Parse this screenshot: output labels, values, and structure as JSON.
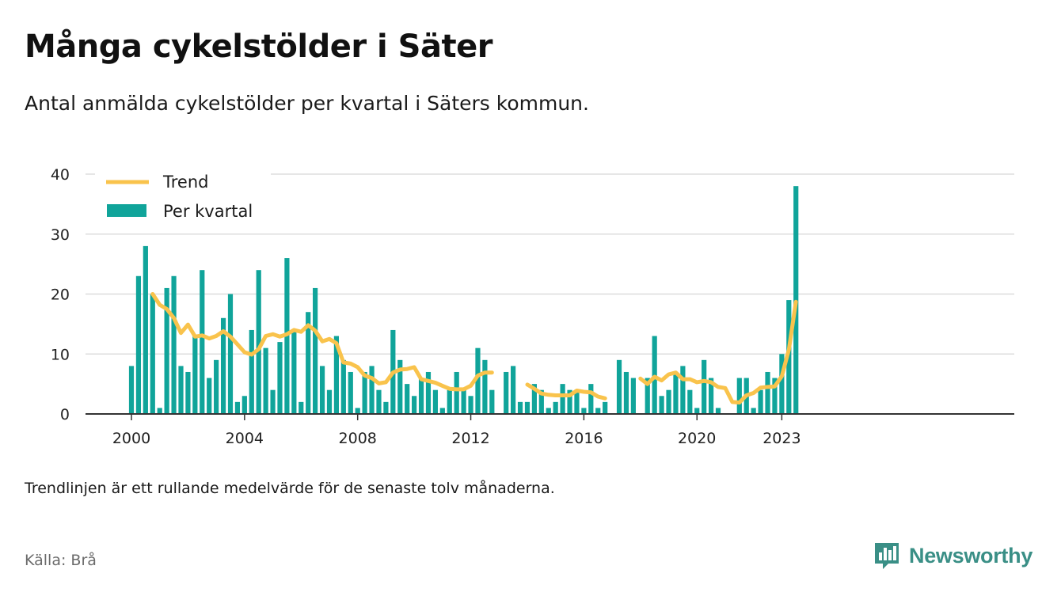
{
  "header": {
    "title": "Många cykelstölder i Säter",
    "subtitle": "Antal anmälda cykelstölder per kvartal i Säters kommun."
  },
  "footer": {
    "note": "Trendlinjen är ett rullande medelvärde för de senaste tolv månaderna.",
    "source": "Källa: Brå",
    "brand": "Newsworthy"
  },
  "colors": {
    "bar": "#10a49a",
    "trend": "#f9c34c",
    "grid": "#dddddd",
    "axis": "#333333",
    "brand": "#3a8f86"
  },
  "icons": {
    "brand_logo": "bar-chart-bubble-icon"
  },
  "chart_data": {
    "type": "bar",
    "ylim": [
      0,
      40
    ],
    "yticks": [
      0,
      10,
      20,
      30,
      40
    ],
    "xticks": [
      {
        "label": "2000",
        "year": 2000
      },
      {
        "label": "2004",
        "year": 2004
      },
      {
        "label": "2008",
        "year": 2008
      },
      {
        "label": "2012",
        "year": 2012
      },
      {
        "label": "2016",
        "year": 2016
      },
      {
        "label": "2020",
        "year": 2020
      },
      {
        "label": "2023",
        "year": 2023
      }
    ],
    "legend_position": "top-left",
    "grid": true,
    "series": [
      {
        "name": "Per kvartal",
        "type": "bar",
        "start": "2000-Q1",
        "values": [
          8,
          23,
          28,
          20,
          1,
          21,
          23,
          8,
          7,
          13,
          24,
          6,
          9,
          16,
          20,
          2,
          3,
          14,
          24,
          11,
          4,
          12,
          26,
          14,
          2,
          17,
          21,
          8,
          4,
          13,
          9,
          7,
          1,
          7,
          8,
          4,
          2,
          14,
          9,
          5,
          3,
          6,
          7,
          4,
          1,
          4,
          7,
          4,
          3,
          11,
          9,
          4,
          null,
          7,
          8,
          2,
          2,
          5,
          4,
          1,
          2,
          5,
          4,
          4,
          1,
          5,
          1,
          2,
          null,
          9,
          7,
          6,
          null,
          6,
          13,
          3,
          4,
          7,
          8,
          4,
          1,
          9,
          6,
          1,
          null,
          null,
          6,
          6,
          1,
          4,
          7,
          6,
          10,
          19,
          38
        ]
      },
      {
        "name": "Trend",
        "type": "line",
        "start": "2000-Q1",
        "values": [
          null,
          null,
          null,
          20,
          18.2,
          17.5,
          16,
          13.5,
          14.9,
          12.9,
          13.1,
          12.6,
          13,
          13.8,
          12.9,
          11.6,
          10.3,
          9.9,
          10.8,
          13,
          13.3,
          12.9,
          13.3,
          14,
          13.7,
          14.8,
          13.9,
          12.1,
          12.5,
          11.8,
          8.6,
          8.4,
          7.8,
          6.4,
          6,
          5.1,
          5.3,
          6.9,
          7.4,
          7.5,
          7.8,
          5.8,
          5.5,
          5.2,
          4.7,
          4.2,
          4.1,
          4.1,
          4.7,
          6.4,
          6.9,
          6.9,
          null,
          null,
          null,
          null,
          4.9,
          4.2,
          3.4,
          3.2,
          3.1,
          3.1,
          3.1,
          3.9,
          3.7,
          3.6,
          2.9,
          2.6,
          null,
          null,
          null,
          null,
          5.9,
          5,
          6.2,
          5.6,
          6.6,
          6.9,
          5.8,
          5.8,
          5.3,
          5.5,
          5.3,
          4.5,
          4.3,
          2,
          1.9,
          3.1,
          3.5,
          4.4,
          4.5,
          4.6,
          6.3,
          10.7,
          18.7
        ]
      }
    ]
  }
}
